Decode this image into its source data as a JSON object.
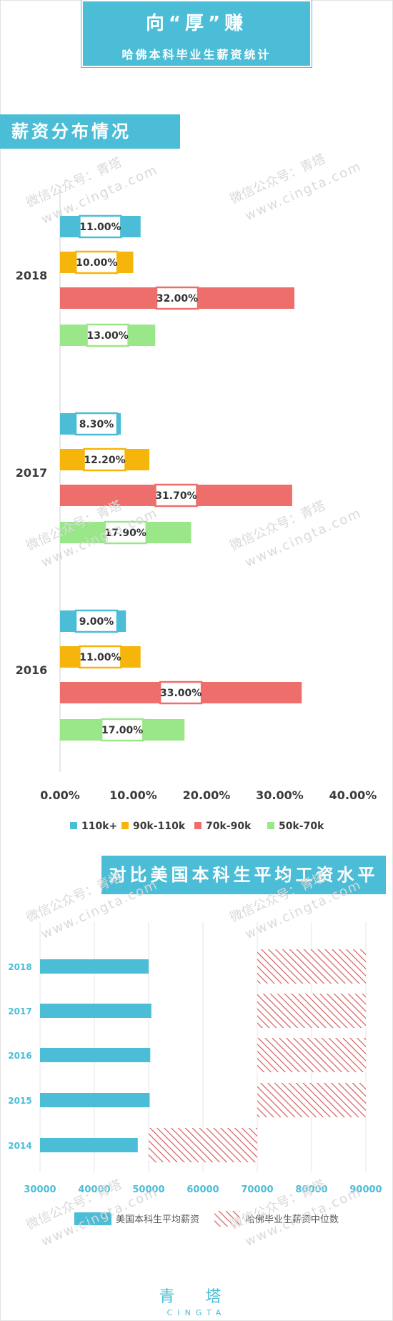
{
  "header": {
    "title": "向“厚”赚",
    "subtitle": "哈佛本科毕业生薪资统计"
  },
  "section1": {
    "title": "薪资分布情况"
  },
  "section2": {
    "title": "对比美国本科生平均工资水平"
  },
  "watermark": {
    "line1": "微信公众号：青塔",
    "line2": "www.cingta.com"
  },
  "brand": {
    "cn": "青 塔",
    "en": "CINGTA"
  },
  "colors": {
    "accent": "#4bbdd6",
    "s110": "#4bbdd6",
    "s90": "#f5b50a",
    "s70": "#ee6e6c",
    "s50": "#9ae78a",
    "hatch": "#d95c5c"
  },
  "chart_data": [
    {
      "type": "bar",
      "orientation": "horizontal",
      "categories": [
        "2018",
        "2017",
        "2016"
      ],
      "series": [
        {
          "name": "110k+",
          "values": [
            11.0,
            8.3,
            9.0
          ],
          "labels": [
            "11.00%",
            "8.30%",
            "9.00%"
          ],
          "color": "#4bbdd6"
        },
        {
          "name": "90k-110k",
          "values": [
            10.0,
            12.2,
            11.0
          ],
          "labels": [
            "10.00%",
            "12.20%",
            "11.00%"
          ],
          "color": "#f5b50a"
        },
        {
          "name": "70k-90k",
          "values": [
            32.0,
            31.7,
            33.0
          ],
          "labels": [
            "32.00%",
            "31.70%",
            "33.00%"
          ],
          "color": "#ee6e6c"
        },
        {
          "name": "50k-70k",
          "values": [
            13.0,
            17.9,
            17.0
          ],
          "labels": [
            "13.00%",
            "17.90%",
            "17.00%"
          ],
          "color": "#9ae78a"
        }
      ],
      "xlim": [
        0,
        40
      ],
      "xticks": [
        "0.00%",
        "10.00%",
        "20.00%",
        "30.00%",
        "40.00%"
      ],
      "legend": "bottom"
    },
    {
      "type": "bar",
      "orientation": "horizontal",
      "categories": [
        "2018",
        "2017",
        "2016",
        "2015",
        "2014"
      ],
      "series": [
        {
          "name": "美国本科生平均薪资",
          "values": [
            50000,
            50500,
            50300,
            50200,
            48000
          ]
        },
        {
          "name": "哈佛毕业生薪资中位数",
          "ranges": [
            [
              70000,
              90000
            ],
            [
              70000,
              90000
            ],
            [
              70000,
              90000
            ],
            [
              70000,
              90000
            ],
            [
              50000,
              70000
            ]
          ]
        }
      ],
      "xlim": [
        30000,
        90000
      ],
      "xticks": [
        "30000",
        "40000",
        "50000",
        "60000",
        "70000",
        "80000",
        "90000"
      ],
      "grid": true,
      "legend": "bottom"
    }
  ]
}
